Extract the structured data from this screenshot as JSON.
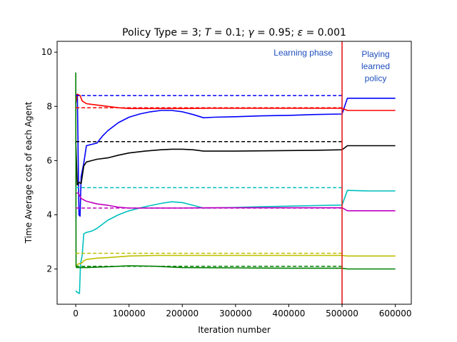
{
  "chart_data": {
    "type": "line",
    "title": "Policy Type = 3; T = 0.1; γ = 0.95; ε = 0.001",
    "title_parts": [
      {
        "text": "Policy Type = 3; ",
        "italic": false
      },
      {
        "text": "T",
        "italic": true
      },
      {
        "text": " = 0.1; ",
        "italic": false
      },
      {
        "text": "γ",
        "italic": true
      },
      {
        "text": " = 0.95; ",
        "italic": false
      },
      {
        "text": "ε",
        "italic": true
      },
      {
        "text": " = 0.001",
        "italic": false
      }
    ],
    "xlabel": "Iteration number",
    "ylabel": "Time Average cost of each Agent",
    "xlim": [
      -35000,
      630000
    ],
    "ylim": [
      0.7,
      10.4
    ],
    "xticks": [
      0,
      100000,
      200000,
      300000,
      400000,
      500000,
      600000
    ],
    "xtick_labels": [
      "0",
      "100000",
      "200000",
      "300000",
      "400000",
      "500000",
      "600000"
    ],
    "yticks": [
      2,
      4,
      6,
      8,
      10
    ],
    "ytick_labels": [
      "2",
      "4",
      "6",
      "8",
      "10"
    ],
    "grid": false,
    "legend": "none",
    "phase_boundary_x": 500000,
    "phase_boundary_color": "#e41a1c",
    "annotations": {
      "learning": "Learning phase",
      "playing": [
        "Playing",
        "learned",
        "policy"
      ]
    },
    "series": [
      {
        "color": "#0000ff",
        "x": [
          0,
          3000,
          6000,
          8000,
          10000,
          15000,
          20000,
          30000,
          40000,
          50000,
          60000,
          80000,
          100000,
          120000,
          140000,
          160000,
          180000,
          200000,
          220000,
          240000,
          260000,
          300000,
          350000,
          400000,
          450000,
          500000,
          510000,
          550000,
          600000
        ],
        "y": [
          8.4,
          8.45,
          4.0,
          3.95,
          5.4,
          5.9,
          6.55,
          6.6,
          6.65,
          6.9,
          7.1,
          7.4,
          7.6,
          7.72,
          7.8,
          7.85,
          7.85,
          7.8,
          7.7,
          7.58,
          7.6,
          7.62,
          7.65,
          7.67,
          7.7,
          7.72,
          8.3,
          8.3,
          8.3
        ],
        "ref": 8.4
      },
      {
        "color": "#ff0000",
        "x": [
          0,
          3000,
          8000,
          12000,
          20000,
          40000,
          60000,
          80000,
          100000,
          150000,
          200000,
          250000,
          300000,
          350000,
          400000,
          450000,
          500000,
          510000,
          550000,
          600000
        ],
        "y": [
          8.1,
          8.45,
          8.4,
          8.2,
          8.1,
          8.05,
          8.0,
          7.95,
          7.92,
          7.92,
          7.92,
          7.93,
          7.93,
          7.93,
          7.93,
          7.93,
          7.93,
          7.85,
          7.85,
          7.85
        ],
        "ref": 7.95
      },
      {
        "color": "#000000",
        "x": [
          0,
          3000,
          6000,
          10000,
          15000,
          20000,
          30000,
          40000,
          60000,
          80000,
          100000,
          130000,
          160000,
          180000,
          200000,
          220000,
          240000,
          300000,
          350000,
          400000,
          450000,
          500000,
          510000,
          550000,
          600000
        ],
        "y": [
          6.7,
          5.1,
          5.2,
          5.15,
          5.8,
          5.95,
          6.0,
          6.05,
          6.1,
          6.2,
          6.28,
          6.35,
          6.4,
          6.42,
          6.42,
          6.4,
          6.35,
          6.35,
          6.36,
          6.37,
          6.38,
          6.4,
          6.55,
          6.55,
          6.55
        ],
        "ref": 6.7
      },
      {
        "color": "#00bfbf",
        "x": [
          0,
          2000,
          4000,
          7000,
          9000,
          12000,
          15000,
          20000,
          30000,
          40000,
          60000,
          80000,
          100000,
          130000,
          160000,
          180000,
          200000,
          220000,
          240000,
          300000,
          350000,
          400000,
          450000,
          500000,
          510000,
          550000,
          600000
        ],
        "y": [
          1.2,
          1.15,
          1.12,
          1.1,
          2.2,
          2.5,
          3.3,
          3.35,
          3.4,
          3.5,
          3.8,
          4.0,
          4.15,
          4.3,
          4.42,
          4.48,
          4.45,
          4.35,
          4.25,
          4.27,
          4.3,
          4.32,
          4.34,
          4.36,
          4.9,
          4.88,
          4.88
        ],
        "ref": 5.0
      },
      {
        "color": "#bf00bf",
        "x": [
          0,
          5000,
          10000,
          15000,
          20000,
          30000,
          40000,
          60000,
          80000,
          100000,
          150000,
          200000,
          250000,
          300000,
          350000,
          400000,
          450000,
          500000,
          510000,
          550000,
          600000
        ],
        "y": [
          4.8,
          4.8,
          4.6,
          4.55,
          4.5,
          4.45,
          4.4,
          4.35,
          4.28,
          4.25,
          4.25,
          4.25,
          4.26,
          4.26,
          4.26,
          4.26,
          4.26,
          4.26,
          4.15,
          4.15,
          4.15
        ],
        "ref": 4.25
      },
      {
        "color": "#bfbf00",
        "x": [
          0,
          3000,
          6000,
          10000,
          15000,
          20000,
          40000,
          60000,
          80000,
          100000,
          150000,
          200000,
          300000,
          400000,
          500000,
          510000,
          550000,
          600000
        ],
        "y": [
          2.1,
          2.15,
          2.2,
          2.2,
          2.3,
          2.35,
          2.4,
          2.42,
          2.45,
          2.48,
          2.5,
          2.5,
          2.5,
          2.5,
          2.5,
          2.48,
          2.48,
          2.48
        ],
        "ref": 2.58
      },
      {
        "color": "#008000",
        "x": [
          0,
          500,
          1500,
          3000,
          6000,
          10000,
          20000,
          40000,
          60000,
          80000,
          100000,
          150000,
          200000,
          300000,
          400000,
          500000,
          510000,
          550000,
          600000
        ],
        "y": [
          9.25,
          2.1,
          2.05,
          2.05,
          2.05,
          2.05,
          2.05,
          2.07,
          2.08,
          2.1,
          2.12,
          2.1,
          2.05,
          2.04,
          2.03,
          2.03,
          2.0,
          2.0,
          2.0
        ],
        "ref": 2.1
      }
    ]
  }
}
